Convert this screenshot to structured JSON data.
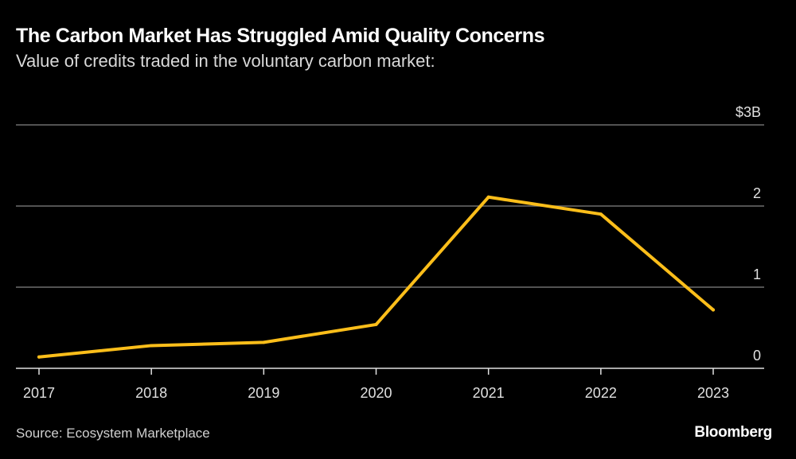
{
  "chart_data": {
    "type": "line",
    "title": "The Carbon Market Has Struggled Amid Quality Concerns",
    "subtitle": "Value of credits traded in the voluntary carbon market:",
    "xlabel": "",
    "ylabel": "",
    "categories": [
      "2017",
      "2018",
      "2019",
      "2020",
      "2021",
      "2022",
      "2023"
    ],
    "series": [
      {
        "name": "Value of credits traded",
        "values": [
          0.14,
          0.28,
          0.32,
          0.54,
          2.11,
          1.9,
          0.72
        ],
        "color": "#fcbe1a"
      }
    ],
    "ylim": [
      0,
      3
    ],
    "y_ticks": [
      {
        "value": 0,
        "label": "0"
      },
      {
        "value": 1,
        "label": "1"
      },
      {
        "value": 2,
        "label": "2"
      },
      {
        "value": 3,
        "label": "$3B"
      }
    ],
    "grid": true,
    "legend": "none",
    "source": "Source: Ecosystem Marketplace",
    "brand": "Bloomberg"
  }
}
